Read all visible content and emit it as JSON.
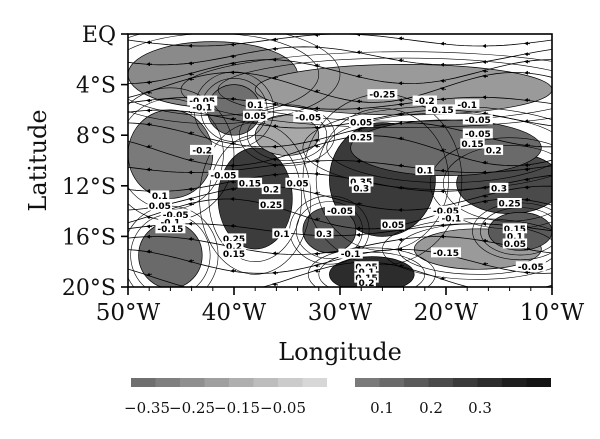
{
  "chart_data": {
    "type": "contour",
    "xlabel": "Longitude",
    "ylabel": "Latitude",
    "x_ticks": [
      "50°W",
      "40°W",
      "30°W",
      "20°W",
      "10°W"
    ],
    "y_ticks": [
      "EQ",
      "4°S",
      "8°S",
      "12°S",
      "16°S",
      "20°S"
    ],
    "xlim": [
      -50,
      -10
    ],
    "ylim": [
      -20,
      0
    ],
    "streamlines": true,
    "colorbar": {
      "negative_labels": [
        "−0.35",
        "−0.25",
        "−0.15",
        "−0.05"
      ],
      "positive_labels": [
        "0.1",
        "0.2",
        "0.3"
      ],
      "negative_colors": [
        "#6f6f6f",
        "#7f7f7f",
        "#8f8f8f",
        "#9f9f9f",
        "#afafaf",
        "#bdbdbd",
        "#cbcbcb",
        "#d7d7d7"
      ],
      "positive_colors": [
        "#7a7a7a",
        "#6a6a6a",
        "#5a5a5a",
        "#4a4a4a",
        "#3a3a3a",
        "#2c2c2c",
        "#1e1e1e",
        "#141414"
      ]
    },
    "contour_labels": [
      {
        "text": "-0.05",
        "lon": -43,
        "lat": -5.3
      },
      {
        "text": "-0.1",
        "lon": -43,
        "lat": -5.8
      },
      {
        "text": "0.1",
        "lon": -38,
        "lat": -5.6
      },
      {
        "text": "0.05",
        "lon": -38,
        "lat": -6.5
      },
      {
        "text": "-0.05",
        "lon": -33,
        "lat": -6.6
      },
      {
        "text": "-0.25",
        "lon": -26,
        "lat": -4.8
      },
      {
        "text": "-0.2",
        "lon": -22,
        "lat": -5.3
      },
      {
        "text": "-0.15",
        "lon": -20.5,
        "lat": -6.0
      },
      {
        "text": "-0.1",
        "lon": -18,
        "lat": -5.6
      },
      {
        "text": "-0.05",
        "lon": -17,
        "lat": -6.8
      },
      {
        "text": "-0.05",
        "lon": -17,
        "lat": -7.9
      },
      {
        "text": "0.15",
        "lon": -17.5,
        "lat": -8.7
      },
      {
        "text": "0.2",
        "lon": -15.5,
        "lat": -9.2
      },
      {
        "text": "0.05",
        "lon": -28,
        "lat": -7.0
      },
      {
        "text": "0.25",
        "lon": -28,
        "lat": -8.2
      },
      {
        "text": "-0.2",
        "lon": -43,
        "lat": -9.2
      },
      {
        "text": "-0.05",
        "lon": -41,
        "lat": -11.2
      },
      {
        "text": "0.15",
        "lon": -38.5,
        "lat": -11.8
      },
      {
        "text": "0.2",
        "lon": -36.5,
        "lat": -12.3
      },
      {
        "text": "0.05",
        "lon": -34,
        "lat": -11.8
      },
      {
        "text": "0.25",
        "lon": -36.5,
        "lat": -13.5
      },
      {
        "text": "0.35",
        "lon": -28,
        "lat": -11.7
      },
      {
        "text": "0.3",
        "lon": -28,
        "lat": -12.2
      },
      {
        "text": "0.1",
        "lon": -22,
        "lat": -10.8
      },
      {
        "text": "0.3",
        "lon": -15,
        "lat": -12.2
      },
      {
        "text": "0.25",
        "lon": -14,
        "lat": -13.4
      },
      {
        "text": "0.1",
        "lon": -47,
        "lat": -12.8
      },
      {
        "text": "0.05",
        "lon": -47,
        "lat": -13.6
      },
      {
        "text": "-0.05",
        "lon": -45.5,
        "lat": -14.3
      },
      {
        "text": "-0.1",
        "lon": -46,
        "lat": -14.9
      },
      {
        "text": "-0.15",
        "lon": -46,
        "lat": -15.4
      },
      {
        "text": "-0.05",
        "lon": -30,
        "lat": -14.0
      },
      {
        "text": "0.05",
        "lon": -25,
        "lat": -15.1
      },
      {
        "text": "-0.05",
        "lon": -20,
        "lat": -14.0
      },
      {
        "text": "-0.1",
        "lon": -19.5,
        "lat": -14.6
      },
      {
        "text": "0.15",
        "lon": -13.5,
        "lat": -15.4
      },
      {
        "text": "0.1",
        "lon": -13.5,
        "lat": -16.0
      },
      {
        "text": "0.05",
        "lon": -13.5,
        "lat": -16.6
      },
      {
        "text": "0.25",
        "lon": -40,
        "lat": -16.2
      },
      {
        "text": "0.2",
        "lon": -40,
        "lat": -16.8
      },
      {
        "text": "0.15",
        "lon": -40,
        "lat": -17.4
      },
      {
        "text": "0.1",
        "lon": -35.5,
        "lat": -15.8
      },
      {
        "text": "0.3",
        "lon": -31.5,
        "lat": -15.8
      },
      {
        "text": "-0.1",
        "lon": -29,
        "lat": -17.4
      },
      {
        "text": "-0.15",
        "lon": -20,
        "lat": -17.3
      },
      {
        "text": "-0.05",
        "lon": -12,
        "lat": -18.4
      },
      {
        "text": "0.05",
        "lon": -27.5,
        "lat": -18.4
      },
      {
        "text": "0.1",
        "lon": -27.5,
        "lat": -18.8
      },
      {
        "text": "0.15",
        "lon": -27.5,
        "lat": -19.3
      },
      {
        "text": "0.2",
        "lon": -27.5,
        "lat": -19.7
      }
    ]
  }
}
